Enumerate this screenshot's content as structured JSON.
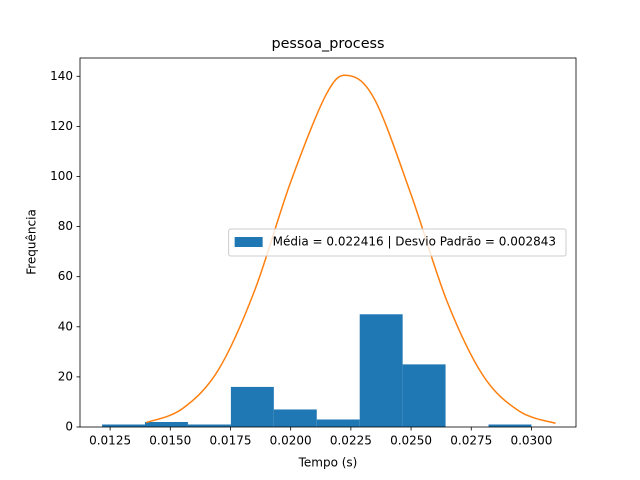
{
  "chart_data": {
    "type": "histogram",
    "title": "pessoa_process",
    "x_label": "Tempo (s)",
    "y_label": "Frequência",
    "bins": [
      0.012167,
      0.01395,
      0.015733,
      0.017517,
      0.0193,
      0.021083,
      0.022867,
      0.02465,
      0.026433,
      0.028217,
      0.03
    ],
    "series": [
      {
        "name": "Média = 0.022416 | Desvio Padrão = 0.002843",
        "color": "#1f77b4",
        "values": [
          1,
          2,
          1,
          16,
          7,
          3,
          45,
          25,
          0,
          1
        ]
      }
    ],
    "curve": {
      "color": "#ff7f0e",
      "x": [
        0.014,
        0.0155,
        0.017,
        0.0185,
        0.02,
        0.0215,
        0.0224,
        0.0235,
        0.025,
        0.0265,
        0.028,
        0.0295,
        0.031
      ],
      "values": [
        1.76,
        7.28,
        22.86,
        54.4,
        97.8,
        133.2,
        140.3,
        130.5,
        92.8,
        50.0,
        20.4,
        6.29,
        1.47
      ]
    },
    "xlim": [
      0.01125,
      0.03185
    ],
    "ylim": [
      0,
      147.3
    ],
    "xticks": [
      0.0125,
      {
        "value": 0.015,
        "label": "0.0150"
      },
      0.0175,
      {
        "value": 0.02,
        "label": "0.0200"
      },
      0.0225,
      {
        "value": 0.025,
        "label": "0.0250"
      },
      0.0275,
      {
        "value": 0.03,
        "label": "0.0300"
      }
    ],
    "yticks": [
      0,
      20,
      40,
      60,
      80,
      100,
      120,
      140
    ],
    "legend": "center right"
  }
}
